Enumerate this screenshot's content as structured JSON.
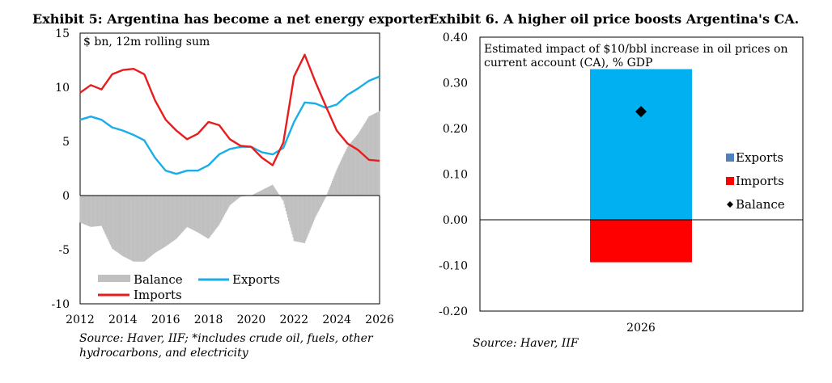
{
  "exhibit5": {
    "title": "Exhibit 5: Argentina has become a net energy exporter.",
    "source": "Source: Haver, IIF; *includes crude oil, fuels, other hydrocarbons, and electricity"
  },
  "exhibit6": {
    "title": "Exhibit 6. A higher oil price boosts Argentina's CA.",
    "source": "Source: Haver, IIF"
  },
  "chart_data": [
    {
      "type": "line",
      "title": "Exhibit 5: Argentina has become a net energy exporter.",
      "annotation": "$ bn, 12m rolling sum",
      "xlim": [
        2012,
        2026
      ],
      "ylim": [
        -10,
        15
      ],
      "x_ticks": [
        2012,
        2014,
        2016,
        2018,
        2020,
        2022,
        2024,
        2026
      ],
      "y_ticks": [
        -10,
        -5,
        0,
        5,
        10,
        15
      ],
      "y_tick_labels": [
        "-10",
        "-5",
        "0",
        "5",
        "10",
        "15"
      ],
      "legend": [
        "Balance",
        "Exports",
        "Imports"
      ],
      "series": [
        {
          "name": "Exports",
          "color": "#1aaee8",
          "x": [
            2012,
            2012.5,
            2013,
            2013.5,
            2014,
            2014.5,
            2015,
            2015.5,
            2016,
            2016.5,
            2017,
            2017.5,
            2018,
            2018.5,
            2019,
            2019.5,
            2020,
            2020.5,
            2021,
            2021.5,
            2022,
            2022.5,
            2023,
            2023.5,
            2024,
            2024.5,
            2025,
            2025.5,
            2026
          ],
          "values": [
            7.0,
            7.3,
            7.0,
            6.3,
            6.0,
            5.6,
            5.1,
            3.5,
            2.3,
            2.0,
            2.3,
            2.3,
            2.8,
            3.8,
            4.3,
            4.5,
            4.5,
            4.0,
            3.8,
            4.4,
            6.8,
            8.6,
            8.5,
            8.1,
            8.4,
            9.3,
            9.9,
            10.6,
            11.0
          ]
        },
        {
          "name": "Imports",
          "color": "#e81c1c",
          "x": [
            2012,
            2012.5,
            2013,
            2013.5,
            2014,
            2014.5,
            2015,
            2015.5,
            2016,
            2016.5,
            2017,
            2017.5,
            2018,
            2018.5,
            2019,
            2019.5,
            2020,
            2020.5,
            2021,
            2021.5,
            2022,
            2022.5,
            2023,
            2023.5,
            2024,
            2024.5,
            2025,
            2025.5,
            2026
          ],
          "values": [
            9.5,
            10.2,
            9.8,
            11.2,
            11.6,
            11.7,
            11.2,
            8.8,
            7.0,
            6.0,
            5.2,
            5.7,
            6.8,
            6.5,
            5.2,
            4.6,
            4.5,
            3.5,
            2.8,
            4.9,
            11.0,
            13.0,
            10.5,
            8.2,
            6.0,
            4.8,
            4.2,
            3.3,
            3.2
          ]
        },
        {
          "name": "Balance",
          "color": "#c0c0c0",
          "x": [
            2012,
            2012.5,
            2013,
            2013.5,
            2014,
            2014.5,
            2015,
            2015.5,
            2016,
            2016.5,
            2017,
            2017.5,
            2018,
            2018.5,
            2019,
            2019.5,
            2020,
            2020.5,
            2021,
            2021.5,
            2022,
            2022.5,
            2023,
            2023.5,
            2024,
            2024.5,
            2025,
            2025.5,
            2026
          ],
          "values": [
            -2.5,
            -2.9,
            -2.8,
            -4.9,
            -5.6,
            -6.1,
            -6.1,
            -5.3,
            -4.7,
            -4.0,
            -2.9,
            -3.4,
            -4.0,
            -2.7,
            -0.9,
            -0.1,
            0.0,
            0.5,
            1.0,
            -0.5,
            -4.2,
            -4.4,
            -2.0,
            -0.1,
            2.4,
            4.5,
            5.7,
            7.3,
            7.8
          ]
        }
      ]
    },
    {
      "type": "bar",
      "title": "Exhibit 6. A higher oil price boosts Argentina's CA.",
      "annotation": "Estimated impact of $10/bbl increase in oil prices on current account (CA), % GDP",
      "categories": [
        "2026"
      ],
      "ylim": [
        -0.2,
        0.4
      ],
      "y_ticks": [
        -0.2,
        -0.1,
        0.0,
        0.1,
        0.2,
        0.3,
        0.4
      ],
      "y_tick_labels": [
        "-0.20",
        "-0.10",
        "0.00",
        "0.10",
        "0.20",
        "0.30",
        "0.40"
      ],
      "legend": [
        "Exports",
        "Imports",
        "Balance"
      ],
      "series": [
        {
          "name": "Exports",
          "values": [
            0.33
          ],
          "color": "#00b0f0",
          "legend_color": "#4f81bd"
        },
        {
          "name": "Imports",
          "values": [
            -0.093
          ],
          "color": "#ff0000"
        },
        {
          "name": "Balance",
          "values": [
            0.237
          ],
          "marker": "diamond",
          "color": "#000000"
        }
      ]
    }
  ]
}
